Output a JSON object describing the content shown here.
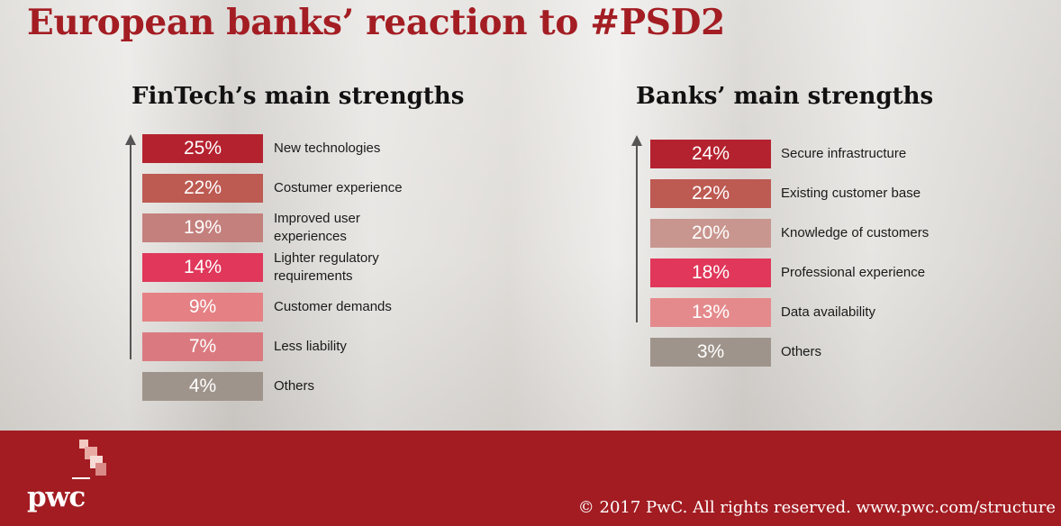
{
  "title": "European banks’ reaction to #PSD2",
  "footer": {
    "copyright": "© 2017 PwC. All rights reserved. www.pwc.com/structure",
    "logo_text": "pwc"
  },
  "chart_data": [
    {
      "type": "bar",
      "title": "FinTech’s main strengths",
      "categories": [
        "New technologies",
        "Costumer experience",
        "Improved user\nexperiences",
        "Lighter regulatory\nrequirements",
        "Customer demands",
        "Less liability",
        "Others"
      ],
      "values": [
        25,
        22,
        19,
        14,
        9,
        7,
        4
      ],
      "value_labels": [
        "25%",
        "22%",
        "19%",
        "14%",
        "9%",
        "7%",
        "4%"
      ],
      "colors": [
        "#b5222f",
        "#bd5a52",
        "#c4807d",
        "#e0375a",
        "#e58084",
        "#da7a80",
        "#9f948b"
      ]
    },
    {
      "type": "bar",
      "title": "Banks’ main strengths",
      "categories": [
        "Secure infrastructure",
        "Existing customer base",
        "Knowledge of customers",
        "Professional experience",
        "Data availability",
        "Others"
      ],
      "values": [
        24,
        22,
        20,
        18,
        13,
        3
      ],
      "value_labels": [
        "24%",
        "22%",
        "20%",
        "18%",
        "13%",
        "3%"
      ],
      "colors": [
        "#b5222f",
        "#bd5a52",
        "#c8968f",
        "#e0375a",
        "#e58a8c",
        "#9f948b"
      ]
    }
  ]
}
